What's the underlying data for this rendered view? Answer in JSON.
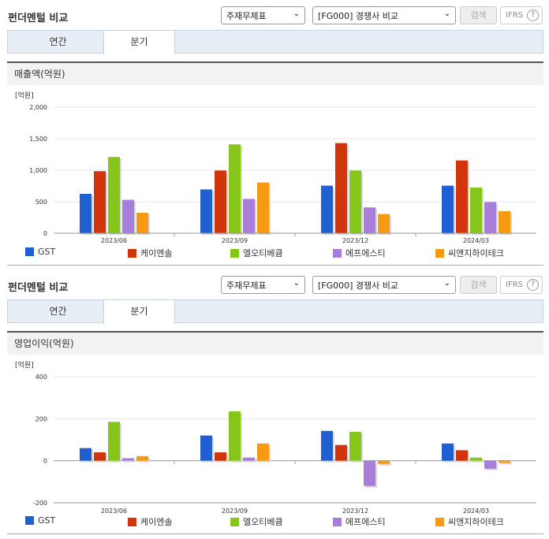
{
  "colors": {
    "GST": "#1f5fd1",
    "케이엔솔": "#d0350b",
    "엘오티베큠": "#86c51a",
    "에프에스티": "#a77ed9",
    "씨앤지하이테크": "#f59a12"
  },
  "panels": [
    {
      "title": "펀더멘털 비교",
      "select1": "주재무제표",
      "select2": "[FG000] 경쟁사 비교",
      "search_label": "검색",
      "ifrs_label": "IFRS",
      "ifrs_help": "?",
      "tabs": [
        {
          "label": "연간"
        },
        {
          "label": "분기"
        }
      ],
      "metric": "매출액(억원)",
      "legend": [
        "GST",
        "케이엔솔",
        "엘오티베큠",
        "에프에스티",
        "씨앤지하이테크"
      ]
    },
    {
      "title": "펀더멘털 비교",
      "select1": "주재무제표",
      "select2": "[FG000] 경쟁사 비교",
      "search_label": "검색",
      "ifrs_label": "IFRS",
      "ifrs_help": "?",
      "tabs": [
        {
          "label": "연간"
        },
        {
          "label": "분기"
        }
      ],
      "metric": "영업이익(억원)",
      "legend": [
        "GST",
        "케이엔솔",
        "엘오티베큠",
        "에프에스티",
        "씨앤지하이테크"
      ]
    }
  ],
  "chart_data": [
    {
      "type": "bar",
      "unit_label": "[억원]",
      "categories": [
        "2023/06",
        "2023/09",
        "2023/12",
        "2024/03"
      ],
      "ylim": [
        0,
        2000
      ],
      "yticks": [
        0,
        500,
        1000,
        1500,
        2000
      ],
      "ytick_labels": [
        "0",
        "500",
        "1,000",
        "1,500",
        "2,000"
      ],
      "grid": true,
      "legend_position": "bottom",
      "series": [
        {
          "name": "GST",
          "values": [
            625,
            695,
            755,
            755
          ]
        },
        {
          "name": "케이엔솔",
          "values": [
            985,
            995,
            1430,
            1155
          ]
        },
        {
          "name": "엘오티베큠",
          "values": [
            1210,
            1410,
            995,
            725
          ]
        },
        {
          "name": "에프에스티",
          "values": [
            530,
            545,
            410,
            495
          ]
        },
        {
          "name": "씨앤지하이테크",
          "values": [
            325,
            805,
            305,
            350
          ]
        }
      ]
    },
    {
      "type": "bar",
      "unit_label": "[억원]",
      "categories": [
        "2023/06",
        "2023/09",
        "2023/12",
        "2024/03"
      ],
      "ylim": [
        -200,
        400
      ],
      "yticks": [
        -200,
        0,
        200,
        400
      ],
      "ytick_labels": [
        "-200",
        "0",
        "200",
        "400"
      ],
      "grid": true,
      "legend_position": "bottom",
      "series": [
        {
          "name": "GST",
          "values": [
            60,
            120,
            142,
            82
          ]
        },
        {
          "name": "케이엔솔",
          "values": [
            40,
            40,
            75,
            50
          ]
        },
        {
          "name": "엘오티베큠",
          "values": [
            185,
            235,
            138,
            15
          ]
        },
        {
          "name": "에프에스티",
          "values": [
            12,
            15,
            -120,
            -38
          ]
        },
        {
          "name": "씨앤지하이테크",
          "values": [
            22,
            82,
            -15,
            -10
          ]
        }
      ]
    }
  ]
}
